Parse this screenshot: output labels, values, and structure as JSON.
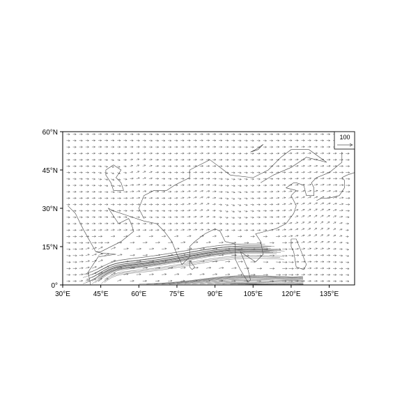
{
  "chart_data": {
    "type": "vector",
    "title": "",
    "xlabel": "",
    "ylabel": "",
    "xlim": [
      30,
      145
    ],
    "ylim": [
      0,
      60
    ],
    "x_ticks": [
      "30°E",
      "45°E",
      "60°E",
      "75°E",
      "90°E",
      "105°E",
      "120°E",
      "135°E"
    ],
    "x_tick_values": [
      30,
      45,
      60,
      75,
      90,
      105,
      120,
      135
    ],
    "y_ticks": [
      "0°",
      "15°N",
      "30°N",
      "45°N",
      "60°N"
    ],
    "y_tick_values": [
      0,
      15,
      30,
      45,
      60
    ],
    "reference_vector": {
      "label": "100",
      "placement": "top-right"
    },
    "grid": false,
    "colors": {
      "vectors": "#555555",
      "coastline": "#444444",
      "frame": "#000000"
    }
  }
}
